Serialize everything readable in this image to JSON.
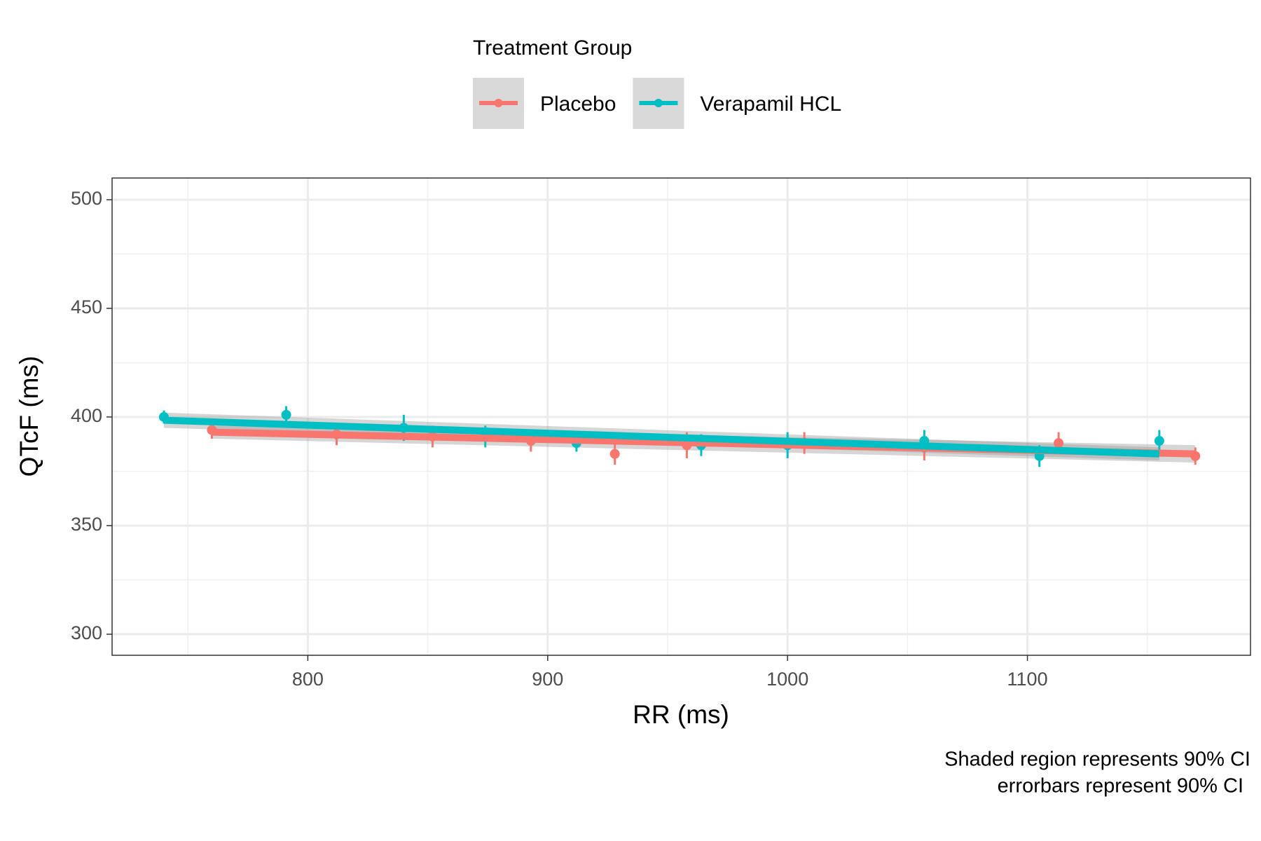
{
  "chart_data": {
    "type": "scatter",
    "legend_title": "Treatment Group",
    "x_label": "RR (ms)",
    "y_label": "QTcF (ms)",
    "caption": [
      "Shaded region represents 90% CI",
      "errorbars represent 90% CI"
    ],
    "xlim": [
      718.4,
      1193
    ],
    "ylim": [
      290.3,
      510
    ],
    "xticks": [
      800,
      900,
      1000,
      1100
    ],
    "yticks": [
      300,
      350,
      400,
      450,
      500
    ],
    "xminor": [
      750,
      850,
      950,
      1050,
      1150
    ],
    "yminor": [
      325,
      375,
      425,
      475
    ],
    "grid": true,
    "legend": "top",
    "band_color": "#999999",
    "series": [
      {
        "name": "Placebo",
        "color": "#F8766D",
        "x": [
          760,
          812,
          852,
          893,
          928,
          958,
          1007,
          1057,
          1113,
          1170
        ],
        "values": [
          394,
          392,
          391,
          389,
          383,
          387,
          388,
          386,
          388,
          382
        ],
        "errors": [
          4,
          5,
          5,
          5,
          5,
          6,
          5,
          6,
          5,
          4
        ],
        "fit": {
          "x": [
            760,
            1170
          ],
          "values": [
            393,
            383
          ],
          "lower": [
            390,
            379
          ],
          "upper": [
            396,
            387
          ]
        }
      },
      {
        "name": "Verapamil HCL",
        "color": "#00BFC4",
        "x": [
          740,
          791,
          840,
          874,
          912,
          964,
          1000,
          1057,
          1105,
          1155
        ],
        "values": [
          400,
          401,
          395,
          391,
          388,
          387,
          387,
          389,
          382,
          389
        ],
        "errors": [
          3,
          4,
          6,
          5,
          4,
          5,
          6,
          5,
          5,
          5
        ],
        "fit": {
          "x": [
            740,
            1155
          ],
          "values": [
            398.5,
            383
          ],
          "lower": [
            395,
            380
          ],
          "upper": [
            402,
            386
          ]
        }
      }
    ]
  }
}
